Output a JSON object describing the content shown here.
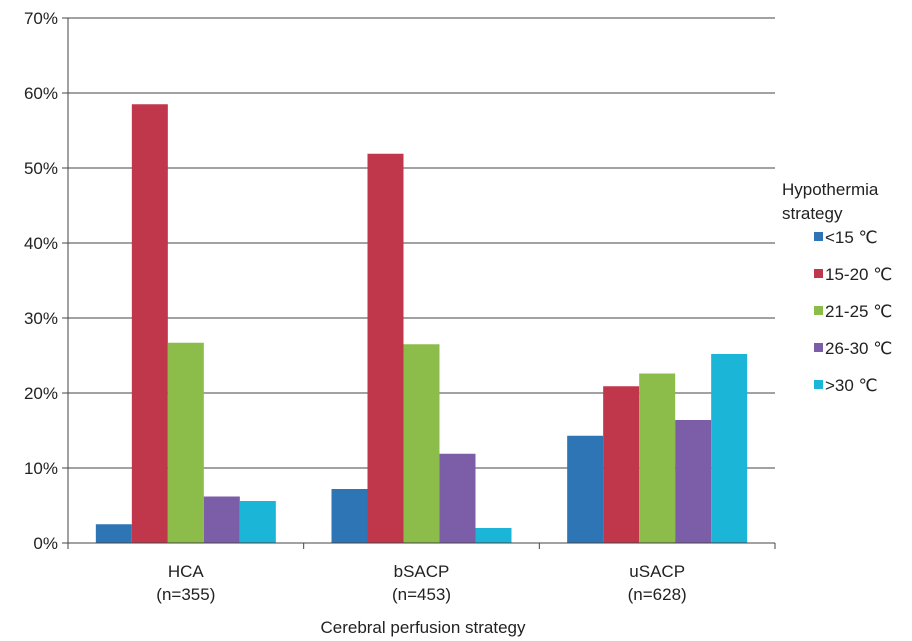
{
  "chart_data": {
    "type": "bar",
    "categories": [
      {
        "name": "HCA",
        "sub": "(n=355)"
      },
      {
        "name": "bSACP",
        "sub": "(n=453)"
      },
      {
        "name": "uSACP",
        "sub": "(n=628)"
      }
    ],
    "series": [
      {
        "name": "<15 ℃",
        "color": "#2e75b6",
        "values": [
          2.5,
          7.2,
          14.3
        ]
      },
      {
        "name": "15-20 ℃",
        "color": "#c0364a",
        "values": [
          58.5,
          51.9,
          20.9
        ]
      },
      {
        "name": "21-25 ℃",
        "color": "#8cbd4a",
        "values": [
          26.7,
          26.5,
          22.6
        ]
      },
      {
        "name": "26-30 ℃",
        "color": "#7b5ea7",
        "values": [
          6.2,
          11.9,
          16.4
        ]
      },
      {
        "name": ">30 ℃",
        "color": "#1bb5d8",
        "values": [
          5.6,
          2.0,
          25.2
        ]
      }
    ],
    "y_ticks": [
      "0%",
      "10%",
      "20%",
      "30%",
      "40%",
      "50%",
      "60%",
      "70%"
    ],
    "ylim": [
      0,
      70
    ],
    "xlabel": "Cerebral perfusion strategy",
    "ylabel": "",
    "legend_title": [
      "Hypothermia",
      "strategy"
    ],
    "legend_position": "right",
    "grid": true
  }
}
